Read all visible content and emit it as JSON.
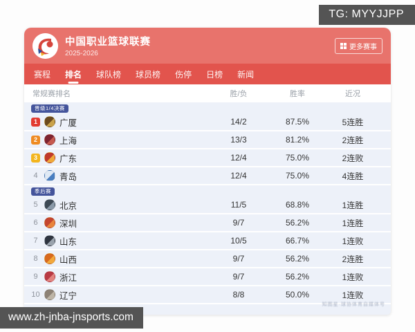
{
  "overlays": {
    "tg_badge": "TG: MYYJJPP",
    "url_badge": "www.zh-jnba-jnsports.com"
  },
  "header": {
    "title": "中国职业篮球联赛",
    "season": "2025-2026",
    "more_label": "更多赛事",
    "more_icon": "grid-icon",
    "logo_icon": "cba-league-logo"
  },
  "tabs": [
    {
      "name": "schedule",
      "label": "赛程",
      "active": false
    },
    {
      "name": "ranking",
      "label": "排名",
      "active": true
    },
    {
      "name": "teams",
      "label": "球队榜",
      "active": false
    },
    {
      "name": "players",
      "label": "球员榜",
      "active": false
    },
    {
      "name": "injuries",
      "label": "伤停",
      "active": false
    },
    {
      "name": "daily",
      "label": "日榜",
      "active": false
    },
    {
      "name": "news",
      "label": "新闻",
      "active": false
    }
  ],
  "table": {
    "columns": [
      "常规赛排名",
      "胜/负",
      "胜率",
      "近况"
    ],
    "sections": [
      {
        "badge": "晋级1/4决赛",
        "rows": [
          {
            "rank": 1,
            "team": "广厦",
            "record": "14/2",
            "win_rate": "87.5%",
            "streak": "5连胜",
            "logo_colors": [
              "#6b4a1f",
              "#c9a24a"
            ]
          },
          {
            "rank": 2,
            "team": "上海",
            "record": "13/3",
            "win_rate": "81.2%",
            "streak": "2连胜",
            "logo_colors": [
              "#7e2430",
              "#c65a4f"
            ]
          },
          {
            "rank": 3,
            "team": "广东",
            "record": "12/4",
            "win_rate": "75.0%",
            "streak": "2连败",
            "logo_colors": [
              "#c0392b",
              "#f0a93a"
            ]
          },
          {
            "rank": 4,
            "team": "青岛",
            "record": "12/4",
            "win_rate": "75.0%",
            "streak": "4连胜",
            "logo_colors": [
              "#dfe9f5",
              "#4a7fc1"
            ]
          }
        ]
      },
      {
        "badge": "季后赛",
        "rows": [
          {
            "rank": 5,
            "team": "北京",
            "record": "11/5",
            "win_rate": "68.8%",
            "streak": "1连胜",
            "logo_colors": [
              "#3e4a55",
              "#8a99a8"
            ]
          },
          {
            "rank": 6,
            "team": "深圳",
            "record": "9/7",
            "win_rate": "56.2%",
            "streak": "1连胜",
            "logo_colors": [
              "#c4452f",
              "#e8843c"
            ]
          },
          {
            "rank": 7,
            "team": "山东",
            "record": "10/5",
            "win_rate": "66.7%",
            "streak": "1连败",
            "logo_colors": [
              "#2f3540",
              "#9aa3ad"
            ]
          },
          {
            "rank": 8,
            "team": "山西",
            "record": "9/7",
            "win_rate": "56.2%",
            "streak": "2连胜",
            "logo_colors": [
              "#d86a1f",
              "#f2a83c"
            ]
          },
          {
            "rank": 9,
            "team": "浙江",
            "record": "9/7",
            "win_rate": "56.2%",
            "streak": "1连败",
            "logo_colors": [
              "#b93a44",
              "#e3837f"
            ]
          },
          {
            "rank": 10,
            "team": "辽宁",
            "record": "8/8",
            "win_rate": "50.0%",
            "streak": "1连败",
            "logo_colors": [
              "#8d8276",
              "#bdb4a6"
            ]
          }
        ]
      }
    ]
  },
  "watermark": "知图星·球协体育自媒体号",
  "colors": {
    "header_bg": "#e8736c",
    "tabbar_bg": "#e2544d",
    "body_bg": "#edf1f9",
    "section_badge_bg": "#44549b",
    "rank_badges": {
      "1": "#e23b31",
      "2": "#ef8b22",
      "3": "#f3b51e"
    }
  }
}
